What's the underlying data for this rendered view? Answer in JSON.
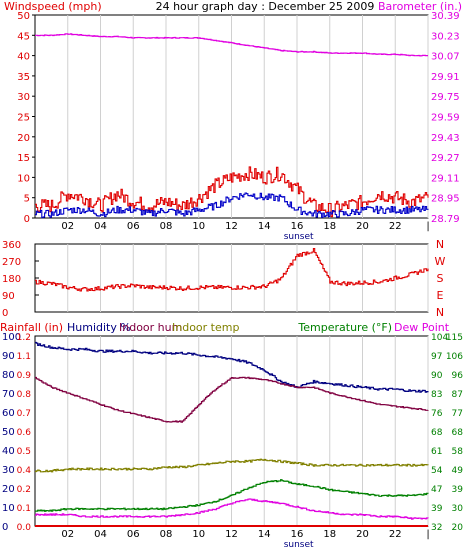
{
  "header": {
    "left_label": "Windspeed (mph)",
    "title": "24 hour graph day : December 25 2009",
    "right_label": "Barometer (in.)"
  },
  "colors": {
    "wind": "#e00000",
    "wind_avg": "#0000c8",
    "baro": "#e000e0",
    "dir": "#e00000",
    "humidity": "#000080",
    "indoor_hum": "#800040",
    "indoor_temp": "#808000",
    "temperature": "#008000",
    "dew_point": "#e000e0",
    "rain": "#e00000",
    "grid": "#d0d0d0",
    "frame": "#000000"
  },
  "chart_data": [
    {
      "type": "line",
      "panel": "wind-barometer",
      "x_ticks": [
        "02",
        "04",
        "06",
        "08",
        "10",
        "12",
        "14",
        "16",
        "18",
        "20",
        "22",
        "|"
      ],
      "x_marker": "sunset",
      "y_left_ticks": [
        "50",
        "45",
        "40",
        "35",
        "30",
        "25",
        "20",
        "15",
        "10",
        "5",
        "0"
      ],
      "y_left_range": [
        0,
        50
      ],
      "y_right_ticks": [
        "30.39",
        "30.23",
        "30.07",
        "29.91",
        "29.75",
        "29.59",
        "29.43",
        "29.27",
        "29.11",
        "28.95",
        "28.79"
      ],
      "y_right_range": [
        28.79,
        30.39
      ],
      "series": [
        {
          "key": "wind_gust",
          "x": [
            0,
            1,
            2,
            3,
            4,
            5,
            6,
            7,
            8,
            9,
            10,
            11,
            12,
            13,
            14,
            15,
            16,
            17,
            18,
            19,
            20,
            21,
            22,
            23,
            24
          ],
          "y": [
            3,
            3,
            6,
            5,
            3,
            6,
            4,
            3,
            4,
            3,
            5,
            8,
            10,
            11,
            10,
            11,
            7,
            3,
            2,
            3,
            4,
            6,
            5,
            4,
            5
          ]
        },
        {
          "key": "wind_avg",
          "x": [
            0,
            1,
            2,
            3,
            4,
            5,
            6,
            7,
            8,
            9,
            10,
            11,
            12,
            13,
            14,
            15,
            16,
            17,
            18,
            19,
            20,
            21,
            22,
            23,
            24
          ],
          "y": [
            1,
            1,
            2,
            2,
            1,
            2,
            2,
            1,
            2,
            1,
            2,
            3,
            5,
            6,
            5,
            5,
            2,
            1,
            1,
            1,
            2,
            2,
            2,
            2,
            2
          ]
        },
        {
          "key": "barometer",
          "x": [
            0,
            1,
            2,
            3,
            4,
            5,
            6,
            7,
            8,
            9,
            10,
            11,
            12,
            13,
            14,
            15,
            16,
            17,
            18,
            19,
            20,
            21,
            22,
            23,
            24
          ],
          "y": [
            30.23,
            30.23,
            30.24,
            30.23,
            30.22,
            30.22,
            30.21,
            30.21,
            30.21,
            30.21,
            30.21,
            30.19,
            30.17,
            30.15,
            30.13,
            30.11,
            30.1,
            30.1,
            30.09,
            30.09,
            30.09,
            30.08,
            30.08,
            30.07,
            30.07
          ]
        }
      ]
    },
    {
      "type": "line",
      "panel": "wind-direction",
      "x_ticks": [
        "02",
        "04",
        "06",
        "08",
        "10",
        "12",
        "14",
        "16",
        "18",
        "20",
        "22",
        "|"
      ],
      "y_left_ticks": [
        "360",
        "270",
        "180",
        "90",
        "0"
      ],
      "y_left_range": [
        0,
        360
      ],
      "y_right_labels": [
        "N",
        "W",
        "S",
        "E",
        "N"
      ],
      "series": [
        {
          "key": "direction",
          "x": [
            0,
            1,
            2,
            3,
            4,
            5,
            6,
            7,
            8,
            9,
            10,
            11,
            12,
            13,
            14,
            15,
            16,
            17,
            18,
            19,
            20,
            21,
            22,
            23,
            24
          ],
          "y": [
            160,
            150,
            130,
            120,
            125,
            135,
            140,
            130,
            130,
            125,
            130,
            130,
            130,
            130,
            135,
            175,
            300,
            325,
            160,
            150,
            155,
            160,
            180,
            200,
            230
          ]
        }
      ]
    },
    {
      "type": "line",
      "panel": "temperature-humidity",
      "header_left": "Rainfall (in)",
      "header_humidity": "Humidity %",
      "header_indoor_hum": "Indoor hum",
      "header_indoor_temp": "Indoor temp",
      "header_temperature": "Temperature (°F)",
      "header_dew": "Dew Point",
      "x_ticks": [
        "02",
        "04",
        "06",
        "08",
        "10",
        "12",
        "14",
        "16",
        "18",
        "20",
        "22",
        "|"
      ],
      "x_marker": "sunset",
      "humidity_ticks": [
        "100",
        "90",
        "80",
        "70",
        "60",
        "50",
        "40",
        "30",
        "20",
        "10",
        "0"
      ],
      "rain_ticks": [
        "1.2",
        "1.1",
        "0.9",
        "0.8",
        "0.7",
        "0.6",
        "0.5",
        "0.4",
        "0.2",
        "0.1",
        "0.0"
      ],
      "temp_ticks_a": [
        "104",
        "97",
        "90",
        "83",
        "76",
        "68",
        "61",
        "54",
        "47",
        "39",
        "32"
      ],
      "temp_ticks_b": [
        "115",
        "106",
        "96",
        "87",
        "77",
        "68",
        "58",
        "49",
        "39",
        "30",
        "20"
      ],
      "humidity_range": [
        0,
        100
      ],
      "series": [
        {
          "key": "humidity",
          "x": [
            0,
            1,
            2,
            3,
            4,
            5,
            6,
            7,
            8,
            9,
            10,
            11,
            12,
            13,
            14,
            15,
            16,
            17,
            18,
            19,
            20,
            21,
            22,
            23,
            24
          ],
          "y": [
            96,
            94,
            93,
            93,
            92,
            92,
            92,
            91,
            91,
            91,
            90,
            89,
            88,
            86,
            82,
            76,
            73,
            76,
            75,
            74,
            73,
            72,
            72,
            71,
            71
          ]
        },
        {
          "key": "indoor_hum",
          "x": [
            0,
            1,
            2,
            3,
            4,
            5,
            6,
            7,
            8,
            9,
            10,
            11,
            12,
            13,
            14,
            15,
            16,
            17,
            18,
            19,
            20,
            21,
            22,
            23,
            24
          ],
          "y": [
            78,
            73,
            70,
            67,
            64,
            61,
            59,
            57,
            55,
            55,
            64,
            72,
            78,
            78,
            77,
            75,
            73,
            73,
            70,
            68,
            66,
            64,
            63,
            62,
            61
          ]
        },
        {
          "key": "indoor_temp",
          "x": [
            0,
            1,
            2,
            3,
            4,
            5,
            6,
            7,
            8,
            9,
            10,
            11,
            12,
            13,
            14,
            15,
            16,
            17,
            18,
            19,
            20,
            21,
            22,
            23,
            24
          ],
          "y": [
            29,
            29,
            30,
            30,
            30,
            30,
            30,
            30,
            31,
            31,
            32,
            33,
            34,
            34,
            35,
            34,
            33,
            32,
            32,
            32,
            32,
            32,
            32,
            32,
            32
          ]
        },
        {
          "key": "temperature",
          "x": [
            0,
            1,
            2,
            3,
            4,
            5,
            6,
            7,
            8,
            9,
            10,
            11,
            12,
            13,
            14,
            15,
            16,
            17,
            18,
            19,
            20,
            21,
            22,
            23,
            24
          ],
          "y": [
            8,
            8,
            9,
            9,
            9,
            9,
            9,
            9,
            9,
            10,
            11,
            13,
            16,
            20,
            23,
            24,
            22,
            21,
            19,
            18,
            17,
            16,
            16,
            16,
            17
          ]
        },
        {
          "key": "dew_point",
          "x": [
            0,
            1,
            2,
            3,
            4,
            5,
            6,
            7,
            8,
            9,
            10,
            11,
            12,
            13,
            14,
            15,
            16,
            17,
            18,
            19,
            20,
            21,
            22,
            23,
            24
          ],
          "y": [
            6,
            6,
            6,
            5,
            5,
            5,
            5,
            5,
            5,
            6,
            7,
            9,
            12,
            14,
            13,
            12,
            10,
            8,
            7,
            6,
            6,
            5,
            5,
            4,
            4
          ]
        },
        {
          "key": "rainfall",
          "x": [
            0,
            24
          ],
          "y": [
            0,
            0
          ]
        }
      ]
    }
  ]
}
